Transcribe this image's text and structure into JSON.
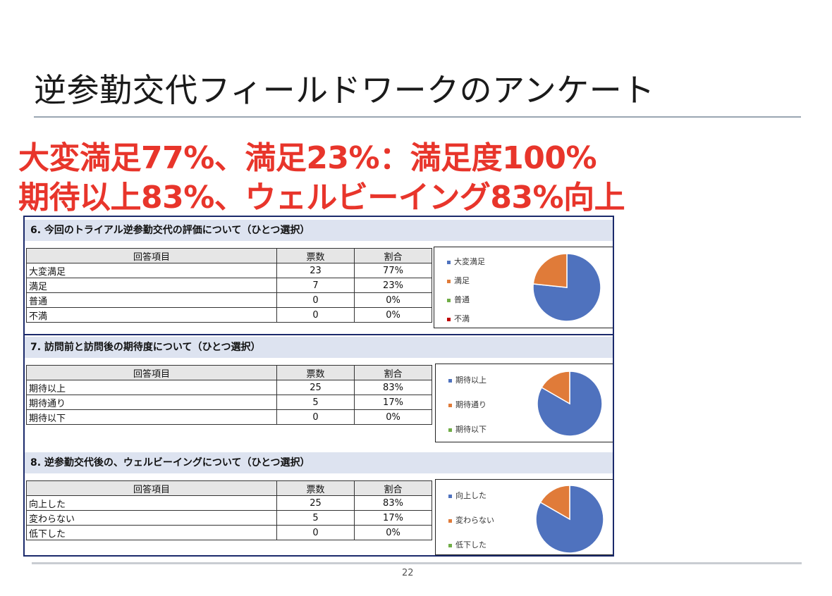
{
  "slide": {
    "title": "逆参勤交代フィールドワークのアンケート",
    "headline_line1": "大変満足77%、満足23%：満足度100%",
    "headline_line2": "期待以上83%、ウェルビーイング83%向上",
    "page_number": "22"
  },
  "colors": {
    "accent_red": "#e8352b",
    "series_blue": "#4f72be",
    "series_orange": "#e07b39",
    "series_green": "#70ad47",
    "series_red": "#c00000",
    "question_bar": "#dde3f0"
  },
  "table_headers": {
    "item": "回答項目",
    "votes": "票数",
    "ratio": "割合"
  },
  "chart_data": [
    {
      "type": "pie",
      "title": "6. 今回のトライアル逆参勤交代の評価について（ひとつ選択）",
      "categories": [
        "大変満足",
        "満足",
        "普通",
        "不満"
      ],
      "values": [
        23,
        7,
        0,
        0
      ],
      "percents": [
        "77%",
        "23%",
        "0%",
        "0%"
      ],
      "legend_colors": [
        "#4f72be",
        "#e07b39",
        "#70ad47",
        "#c00000"
      ]
    },
    {
      "type": "pie",
      "title": "7. 訪問前と訪問後の期待度について（ひとつ選択）",
      "categories": [
        "期待以上",
        "期待通り",
        "期待以下"
      ],
      "values": [
        25,
        5,
        0
      ],
      "percents": [
        "83%",
        "17%",
        "0%"
      ],
      "legend_colors": [
        "#4f72be",
        "#e07b39",
        "#70ad47"
      ]
    },
    {
      "type": "pie",
      "title": "8. 逆参勤交代後の、ウェルビーイングについて（ひとつ選択）",
      "categories": [
        "向上した",
        "変わらない",
        "低下した"
      ],
      "values": [
        25,
        5,
        0
      ],
      "percents": [
        "83%",
        "17%",
        "0%"
      ],
      "legend_colors": [
        "#4f72be",
        "#e07b39",
        "#70ad47"
      ]
    }
  ]
}
